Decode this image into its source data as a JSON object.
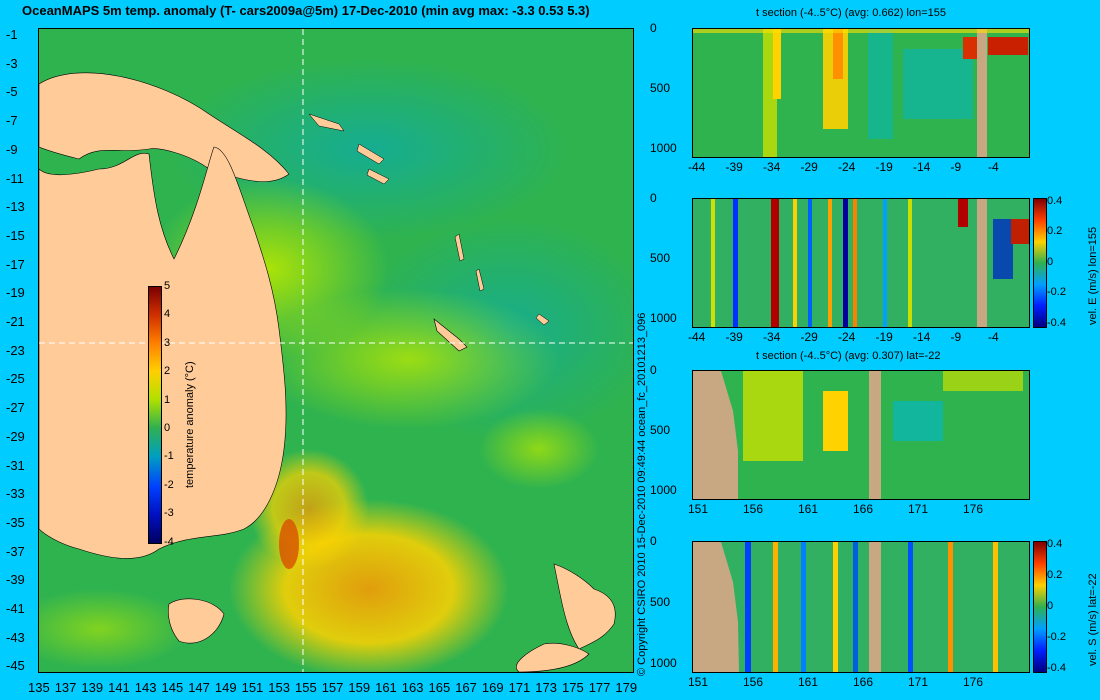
{
  "map": {
    "title": "OceanMAPS 5m temp. anomaly (T- cars2009a@5m) 17-Dec-2010 (min avg max: -3.3 0.53 5.3)",
    "lat_ticks": [
      "-1",
      "-3",
      "-5",
      "-7",
      "-9",
      "-11",
      "-13",
      "-15",
      "-17",
      "-19",
      "-21",
      "-23",
      "-25",
      "-27",
      "-29",
      "-31",
      "-33",
      "-35",
      "-37",
      "-39",
      "-41",
      "-43",
      "-45"
    ],
    "lon_ticks": [
      "135",
      "137",
      "139",
      "141",
      "143",
      "145",
      "147",
      "149",
      "151",
      "153",
      "155",
      "157",
      "159",
      "161",
      "163",
      "165",
      "167",
      "169",
      "171",
      "173",
      "175",
      "177",
      "179"
    ],
    "crosshair": {
      "lon": 155,
      "lat": -22
    },
    "colorbar": {
      "label": "temperature anomaly (°C)",
      "ticks": [
        "5",
        "4",
        "3",
        "2",
        "1",
        "0",
        "-1",
        "-2",
        "-3",
        "-4"
      ]
    }
  },
  "side_text": "© Copyright CSIRO 2010   15-Dec-2010 09:49:44   ocean_fc_20101213_096",
  "sections": [
    {
      "title": "t section (-4..5°C) (avg: 0.662) lon=155",
      "y_ticks": [
        "0",
        "500",
        "1000"
      ],
      "x_ticks": [
        "-44",
        "-39",
        "-34",
        "-29",
        "-24",
        "-19",
        "-14",
        "-9",
        "-4"
      ]
    },
    {
      "title": "",
      "y_ticks": [
        "0",
        "500",
        "1000"
      ],
      "x_ticks": [
        "-44",
        "-39",
        "-34",
        "-29",
        "-24",
        "-19",
        "-14",
        "-9",
        "-4"
      ],
      "cbar_label": "vel. E (m/s) lon=155",
      "cbar_ticks": [
        "0.4",
        "0.2",
        "0",
        "-0.2",
        "-0.4"
      ]
    },
    {
      "title": "t section (-4..5°C) (avg: 0.307) lat=-22",
      "y_ticks": [
        "0",
        "500",
        "1000"
      ],
      "x_ticks": [
        "151",
        "156",
        "161",
        "166",
        "171",
        "176"
      ]
    },
    {
      "title": "",
      "y_ticks": [
        "0",
        "500",
        "1000"
      ],
      "x_ticks": [
        "151",
        "156",
        "161",
        "166",
        "171",
        "176"
      ],
      "cbar_label": "vel. S (m/s) lat=-22",
      "cbar_ticks": [
        "0.4",
        "0.2",
        "0",
        "-0.2",
        "-0.4"
      ]
    }
  ],
  "colors": {
    "background": "#00ccff",
    "land": "#ffcc99",
    "land_section": "#c8a882",
    "ocean": "#2fb34f"
  }
}
